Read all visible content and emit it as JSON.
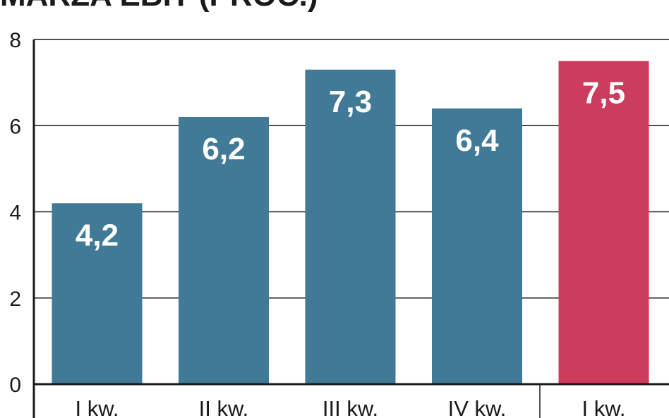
{
  "chart_data": {
    "type": "bar",
    "title": "MARŻA EBIT (PROC.)",
    "categories": [
      "I kw.",
      "II kw.",
      "III kw.",
      "IV kw.",
      "I kw."
    ],
    "values": [
      4.2,
      6.2,
      7.3,
      6.4,
      7.5
    ],
    "value_labels": [
      "4,2",
      "6,2",
      "7,3",
      "6,4",
      "7,5"
    ],
    "bar_colors": [
      "#417a97",
      "#417a97",
      "#417a97",
      "#417a97",
      "#cc3c5c"
    ],
    "ylim": [
      0,
      8
    ],
    "yticks": [
      0,
      2,
      4,
      6,
      8
    ],
    "grid": true,
    "legend": "none"
  }
}
